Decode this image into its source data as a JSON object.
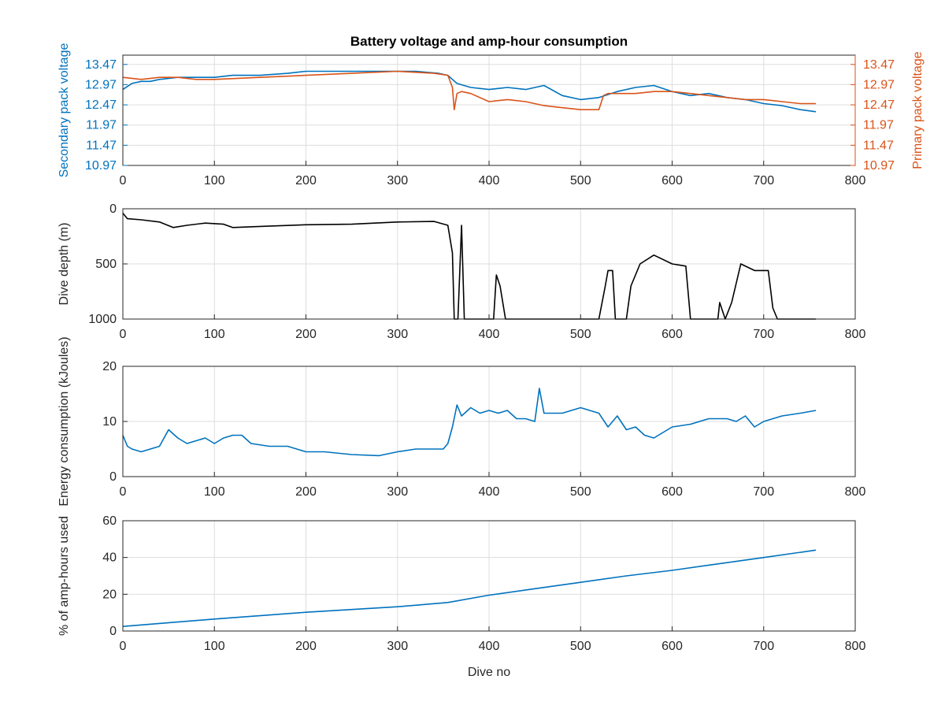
{
  "figure": {
    "title": "Battery voltage and amp-hour consumption",
    "xlabel": "Dive no"
  },
  "colors": {
    "blue": "#0072BD",
    "orange": "#D95319",
    "black": "#000000",
    "grid": "#dddddd",
    "axis": "#262626"
  },
  "chart_data": [
    {
      "type": "line",
      "title": "Battery voltage and amp-hour consumption",
      "xlabel": "",
      "ylabel": "Secondary pack voltage",
      "ylabel_right": "Primary pack voltage",
      "xlim": [
        0,
        800
      ],
      "ylim": [
        10.97,
        13.7
      ],
      "xticks": [
        0,
        100,
        200,
        300,
        400,
        500,
        600,
        700,
        800
      ],
      "yticks": [
        10.97,
        11.47,
        11.97,
        12.47,
        12.97,
        13.47
      ],
      "ytick_labels": [
        "10.97",
        "11.47",
        "11.97",
        "12.47",
        "12.97",
        "13.47"
      ],
      "grid": true,
      "series": [
        {
          "name": "Secondary pack voltage",
          "axis": "left",
          "color": "#0072BD",
          "x": [
            0,
            10,
            20,
            30,
            40,
            60,
            80,
            100,
            120,
            150,
            180,
            200,
            230,
            260,
            290,
            320,
            345,
            355,
            360,
            365,
            380,
            400,
            420,
            440,
            460,
            480,
            500,
            520,
            540,
            560,
            580,
            600,
            620,
            640,
            660,
            680,
            700,
            720,
            740,
            757
          ],
          "y": [
            12.85,
            13.0,
            13.05,
            13.05,
            13.1,
            13.15,
            13.15,
            13.15,
            13.2,
            13.2,
            13.25,
            13.3,
            13.3,
            13.3,
            13.3,
            13.3,
            13.25,
            13.2,
            13.1,
            13.0,
            12.9,
            12.85,
            12.9,
            12.85,
            12.95,
            12.7,
            12.6,
            12.65,
            12.8,
            12.9,
            12.95,
            12.8,
            12.7,
            12.75,
            12.65,
            12.6,
            12.5,
            12.45,
            12.35,
            12.3
          ]
        },
        {
          "name": "Primary pack voltage",
          "axis": "right",
          "color": "#D95319",
          "x": [
            0,
            20,
            40,
            60,
            80,
            100,
            150,
            200,
            250,
            300,
            340,
            355,
            360,
            362,
            365,
            370,
            380,
            400,
            420,
            440,
            460,
            480,
            500,
            520,
            525,
            530,
            540,
            560,
            580,
            600,
            620,
            640,
            660,
            680,
            700,
            720,
            740,
            757
          ],
          "y": [
            13.15,
            13.1,
            13.15,
            13.15,
            13.1,
            13.1,
            13.15,
            13.2,
            13.25,
            13.3,
            13.25,
            13.2,
            12.9,
            12.35,
            12.75,
            12.8,
            12.75,
            12.55,
            12.6,
            12.55,
            12.45,
            12.4,
            12.35,
            12.35,
            12.7,
            12.75,
            12.75,
            12.75,
            12.8,
            12.8,
            12.75,
            12.7,
            12.65,
            12.6,
            12.6,
            12.55,
            12.5,
            12.5
          ]
        }
      ]
    },
    {
      "type": "line",
      "title": "",
      "xlabel": "",
      "ylabel": "Dive depth (m)",
      "xlim": [
        0,
        800
      ],
      "ylim": [
        0,
        1000
      ],
      "yreversed": true,
      "xticks": [
        0,
        100,
        200,
        300,
        400,
        500,
        600,
        700,
        800
      ],
      "yticks": [
        0,
        500,
        1000
      ],
      "ytick_labels": [
        "0",
        "500",
        "1000"
      ],
      "grid": true,
      "series": [
        {
          "name": "Dive depth",
          "color": "#000000",
          "x": [
            0,
            5,
            20,
            40,
            55,
            70,
            90,
            110,
            120,
            150,
            200,
            250,
            300,
            340,
            355,
            360,
            362,
            366,
            370,
            373,
            376,
            400,
            405,
            408,
            412,
            418,
            420,
            500,
            520,
            527,
            530,
            535,
            538,
            550,
            555,
            565,
            580,
            600,
            615,
            620,
            650,
            652,
            658,
            665,
            675,
            690,
            705,
            710,
            715,
            757
          ],
          "y": [
            40,
            90,
            100,
            120,
            170,
            150,
            130,
            140,
            170,
            160,
            145,
            140,
            120,
            115,
            150,
            400,
            1000,
            1000,
            150,
            1000,
            1000,
            1000,
            1000,
            600,
            700,
            1000,
            1000,
            1000,
            1000,
            700,
            560,
            560,
            1000,
            1000,
            700,
            500,
            420,
            500,
            520,
            1000,
            1000,
            850,
            1000,
            850,
            500,
            560,
            560,
            900,
            1000,
            1000
          ]
        }
      ]
    },
    {
      "type": "line",
      "title": "",
      "xlabel": "",
      "ylabel": "Energy consumption (kJoules)",
      "xlim": [
        0,
        800
      ],
      "ylim": [
        0,
        20
      ],
      "xticks": [
        0,
        100,
        200,
        300,
        400,
        500,
        600,
        700,
        800
      ],
      "yticks": [
        0,
        10,
        20
      ],
      "ytick_labels": [
        "0",
        "10",
        "20"
      ],
      "grid": true,
      "series": [
        {
          "name": "Energy consumption",
          "color": "#0072BD",
          "x": [
            0,
            5,
            10,
            20,
            30,
            40,
            50,
            60,
            70,
            80,
            90,
            100,
            110,
            120,
            130,
            140,
            160,
            180,
            200,
            220,
            250,
            280,
            300,
            320,
            340,
            350,
            355,
            360,
            365,
            370,
            380,
            390,
            400,
            410,
            420,
            430,
            440,
            450,
            455,
            460,
            480,
            500,
            510,
            520,
            530,
            540,
            550,
            560,
            570,
            580,
            590,
            600,
            620,
            640,
            660,
            670,
            680,
            690,
            700,
            720,
            740,
            757
          ],
          "y": [
            7.5,
            5.5,
            5,
            4.5,
            5,
            5.5,
            8.5,
            7,
            6,
            6.5,
            7,
            6,
            7,
            7.5,
            7.5,
            6,
            5.5,
            5.5,
            4.5,
            4.5,
            4,
            3.8,
            4.5,
            5,
            5,
            5,
            6,
            9,
            13,
            11,
            12.5,
            11.5,
            12,
            11.5,
            12,
            10.5,
            10.5,
            10,
            16,
            11.5,
            11.5,
            12.5,
            12,
            11.5,
            9,
            11,
            8.5,
            9,
            7.5,
            7,
            8,
            9,
            9.5,
            10.5,
            10.5,
            10,
            11,
            9,
            10,
            11,
            11.5,
            12
          ]
        }
      ]
    },
    {
      "type": "line",
      "title": "",
      "xlabel": "Dive no",
      "ylabel": "% of amp-hours used",
      "xlim": [
        0,
        800
      ],
      "ylim": [
        0,
        60
      ],
      "xticks": [
        0,
        100,
        200,
        300,
        400,
        500,
        600,
        700,
        800
      ],
      "yticks": [
        0,
        20,
        40,
        60
      ],
      "ytick_labels": [
        "0",
        "20",
        "40",
        "60"
      ],
      "grid": true,
      "series": [
        {
          "name": "% of amp-hours used",
          "color": "#0072BD",
          "x": [
            0,
            100,
            200,
            300,
            355,
            400,
            450,
            500,
            550,
            600,
            650,
            700,
            757
          ],
          "y": [
            2.5,
            6.5,
            10.2,
            13.2,
            15.5,
            19.5,
            23,
            26.5,
            30,
            33,
            36.5,
            40,
            44
          ]
        }
      ]
    }
  ]
}
